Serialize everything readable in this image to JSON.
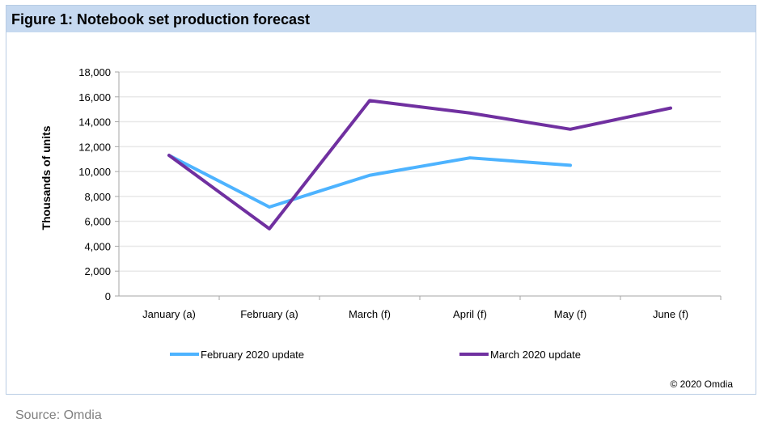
{
  "title": "Figure 1: Notebook set production forecast",
  "copyright": "© 2020 Omdia",
  "source": "Source: Omdia",
  "chart_data": {
    "type": "line",
    "title": "Figure 1: Notebook set production forecast",
    "xlabel": "",
    "ylabel": "Thousands of units",
    "ylim": [
      0,
      18000
    ],
    "yticks": [
      "0",
      "2,000",
      "4,000",
      "6,000",
      "8,000",
      "10,000",
      "12,000",
      "14,000",
      "16,000",
      "18,000"
    ],
    "grid": true,
    "legend": "bottom",
    "categories": [
      "January (a)",
      "February (a)",
      "March (f)",
      "April (f)",
      "May (f)",
      "June (f)"
    ],
    "series": [
      {
        "name": "February 2020 update",
        "color": "#4db3ff",
        "values": [
          11300,
          7150,
          9700,
          11100,
          10500,
          null
        ]
      },
      {
        "name": "March 2020 update",
        "color": "#7030a0",
        "values": [
          11300,
          5400,
          15700,
          14700,
          13400,
          15100
        ]
      }
    ]
  }
}
